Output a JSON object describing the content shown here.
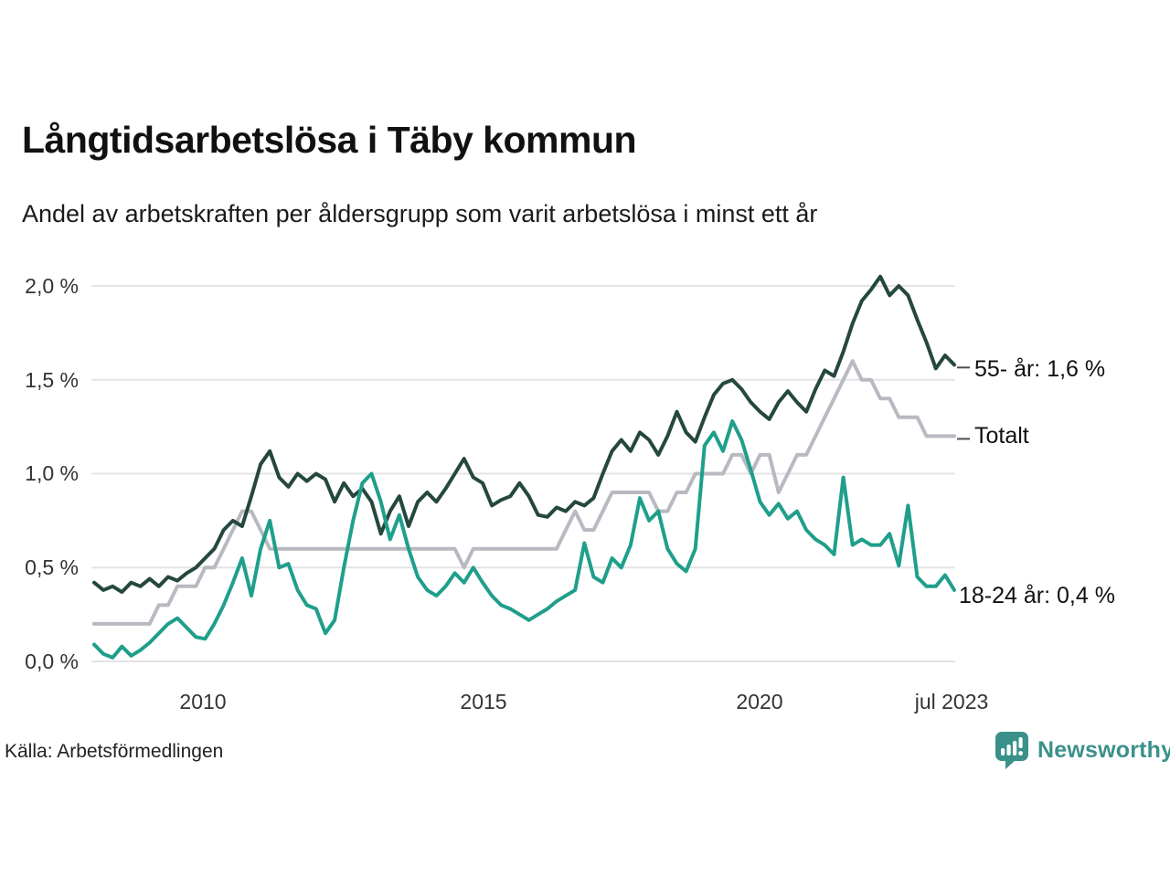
{
  "title": "Långtidsarbetslösa i Täby kommun",
  "subtitle": "Andel av arbetskraften per åldersgrupp som varit arbetslösa i minst ett år",
  "source": "Källa: Arbetsförmedlingen",
  "branding": {
    "name": "Newsworthy",
    "icon": "newsworthy-speech-bubble-bar-chart-icon",
    "color": "#3a918a"
  },
  "colors": {
    "series_55": "#25483e",
    "series_total": "#b9b9c2",
    "series_18_24": "#1f9f8b",
    "gridline": "#e4e4e6",
    "text": "#1a1a1a",
    "tick_text": "#333333",
    "annotation_dash": "#4d4d4d"
  },
  "chart_data": {
    "type": "line",
    "title": "Långtidsarbetslösa i Täby kommun",
    "subtitle": "Andel av arbetskraften per åldersgrupp som varit arbetslösa i minst ett år",
    "unit": "% av arbetskraften",
    "x_start": "2008-01",
    "x_end": "2023-07",
    "x_step_months": 2,
    "grid": true,
    "legend_position": "right-annotations",
    "ylim": [
      0,
      2.1
    ],
    "y_ticks": [
      {
        "label": "2,0 %",
        "value": 2.0
      },
      {
        "label": "1,5 %",
        "value": 1.5
      },
      {
        "label": "1,0 %",
        "value": 1.0
      },
      {
        "label": "0,5 %",
        "value": 0.5
      },
      {
        "label": "0,0 %",
        "value": 0.0
      }
    ],
    "x_ticks": [
      {
        "label": "2010",
        "index": 12
      },
      {
        "label": "2015",
        "index": 42
      },
      {
        "label": "2020",
        "index": 72
      },
      {
        "label": "jul 2023",
        "index": 93
      }
    ],
    "series": [
      {
        "name": "55- år",
        "label": "55- år: 1,6 %",
        "end_value": "1,6 %",
        "color": "#25483e",
        "end_dash": true,
        "values": [
          0.42,
          0.38,
          0.4,
          0.37,
          0.42,
          0.4,
          0.44,
          0.4,
          0.45,
          0.43,
          0.47,
          0.5,
          0.55,
          0.6,
          0.7,
          0.75,
          0.72,
          0.88,
          1.05,
          1.12,
          0.98,
          0.93,
          1.0,
          0.96,
          1.0,
          0.97,
          0.85,
          0.95,
          0.88,
          0.92,
          0.85,
          0.68,
          0.8,
          0.88,
          0.72,
          0.85,
          0.9,
          0.85,
          0.92,
          1.0,
          1.08,
          0.98,
          0.95,
          0.83,
          0.86,
          0.88,
          0.95,
          0.88,
          0.78,
          0.77,
          0.82,
          0.8,
          0.85,
          0.83,
          0.87,
          1.0,
          1.12,
          1.18,
          1.12,
          1.22,
          1.18,
          1.1,
          1.2,
          1.33,
          1.22,
          1.17,
          1.3,
          1.42,
          1.48,
          1.5,
          1.45,
          1.38,
          1.33,
          1.29,
          1.38,
          1.44,
          1.38,
          1.33,
          1.45,
          1.55,
          1.52,
          1.65,
          1.8,
          1.92,
          1.98,
          2.05,
          1.95,
          2.0,
          1.95,
          1.82,
          1.7,
          1.56,
          1.63,
          1.58
        ]
      },
      {
        "name": "Totalt",
        "label": "Totalt",
        "end_value": "1,2 %",
        "color": "#b9b9c2",
        "end_dash": true,
        "values": [
          0.2,
          0.2,
          0.2,
          0.2,
          0.2,
          0.2,
          0.2,
          0.3,
          0.3,
          0.4,
          0.4,
          0.4,
          0.5,
          0.5,
          0.6,
          0.7,
          0.8,
          0.8,
          0.7,
          0.6,
          0.6,
          0.6,
          0.6,
          0.6,
          0.6,
          0.6,
          0.6,
          0.6,
          0.6,
          0.6,
          0.6,
          0.6,
          0.6,
          0.6,
          0.6,
          0.6,
          0.6,
          0.6,
          0.6,
          0.6,
          0.5,
          0.6,
          0.6,
          0.6,
          0.6,
          0.6,
          0.6,
          0.6,
          0.6,
          0.6,
          0.6,
          0.7,
          0.8,
          0.7,
          0.7,
          0.8,
          0.9,
          0.9,
          0.9,
          0.9,
          0.9,
          0.8,
          0.8,
          0.9,
          0.9,
          1.0,
          1.0,
          1.0,
          1.0,
          1.1,
          1.1,
          1.0,
          1.1,
          1.1,
          0.9,
          1.0,
          1.1,
          1.1,
          1.2,
          1.3,
          1.4,
          1.5,
          1.6,
          1.5,
          1.5,
          1.4,
          1.4,
          1.3,
          1.3,
          1.3,
          1.2,
          1.2,
          1.2,
          1.2
        ]
      },
      {
        "name": "18-24 år",
        "label": "18-24 år: 0,4 %",
        "end_value": "0,4 %",
        "color": "#1f9f8b",
        "end_dash": false,
        "values": [
          0.09,
          0.04,
          0.02,
          0.08,
          0.03,
          0.06,
          0.1,
          0.15,
          0.2,
          0.23,
          0.18,
          0.13,
          0.12,
          0.2,
          0.3,
          0.42,
          0.55,
          0.35,
          0.6,
          0.75,
          0.5,
          0.52,
          0.38,
          0.3,
          0.28,
          0.15,
          0.22,
          0.5,
          0.75,
          0.95,
          1.0,
          0.85,
          0.65,
          0.78,
          0.6,
          0.45,
          0.38,
          0.35,
          0.4,
          0.47,
          0.42,
          0.5,
          0.42,
          0.35,
          0.3,
          0.28,
          0.25,
          0.22,
          0.25,
          0.28,
          0.32,
          0.35,
          0.38,
          0.63,
          0.45,
          0.42,
          0.55,
          0.5,
          0.62,
          0.87,
          0.75,
          0.8,
          0.6,
          0.52,
          0.48,
          0.6,
          1.15,
          1.22,
          1.12,
          1.28,
          1.18,
          1.02,
          0.85,
          0.78,
          0.84,
          0.76,
          0.8,
          0.7,
          0.65,
          0.62,
          0.57,
          0.98,
          0.62,
          0.65,
          0.62,
          0.62,
          0.68,
          0.51,
          0.83,
          0.45,
          0.4,
          0.4,
          0.46,
          0.38
        ]
      }
    ]
  }
}
